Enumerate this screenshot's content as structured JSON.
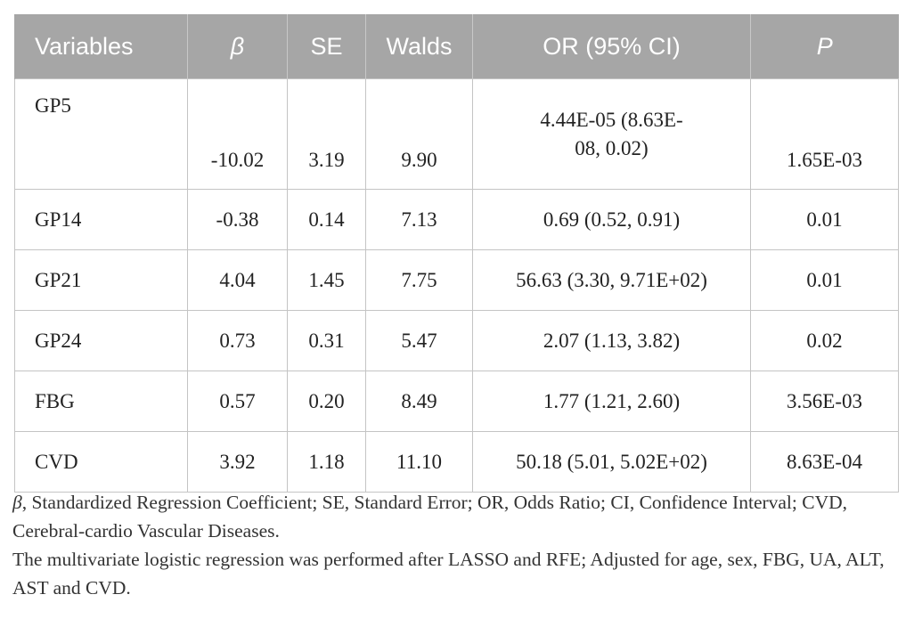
{
  "table": {
    "headers": [
      "Variables",
      "β",
      "SE",
      "Walds",
      "OR (95% CI)",
      "P"
    ],
    "rows": [
      {
        "variable": "GP5",
        "beta": "-10.02",
        "se": "3.19",
        "walds": "9.90",
        "or_line1": "4.44E-05 (8.63E-",
        "or_line2": "08, 0.02)",
        "p": "1.65E-03"
      },
      {
        "variable": "GP14",
        "beta": "-0.38",
        "se": "0.14",
        "walds": "7.13",
        "or": "0.69 (0.52, 0.91)",
        "p": "0.01"
      },
      {
        "variable": "GP21",
        "beta": "4.04",
        "se": "1.45",
        "walds": "7.75",
        "or": "56.63 (3.30, 9.71E+02)",
        "p": "0.01"
      },
      {
        "variable": "GP24",
        "beta": "0.73",
        "se": "0.31",
        "walds": "5.47",
        "or": "2.07 (1.13, 3.82)",
        "p": "0.02"
      },
      {
        "variable": "FBG",
        "beta": "0.57",
        "se": "0.20",
        "walds": "8.49",
        "or": "1.77 (1.21, 2.60)",
        "p": "3.56E-03"
      },
      {
        "variable": "CVD",
        "beta": "3.92",
        "se": "1.18",
        "walds": "11.10",
        "or": "50.18 (5.01, 5.02E+02)",
        "p": "8.63E-04"
      }
    ]
  },
  "footnotes": {
    "abbrev_symbol": "β",
    "abbrev_text": ", Standardized Regression Coefficient; SE, Standard Error; OR, Odds Ratio; CI, Confidence Interval; CVD, Cerebral-cardio Vascular Diseases.",
    "method": "The multivariate logistic regression was performed after LASSO and RFE; Adjusted for age, sex, FBG, UA, ALT, AST and CVD."
  }
}
